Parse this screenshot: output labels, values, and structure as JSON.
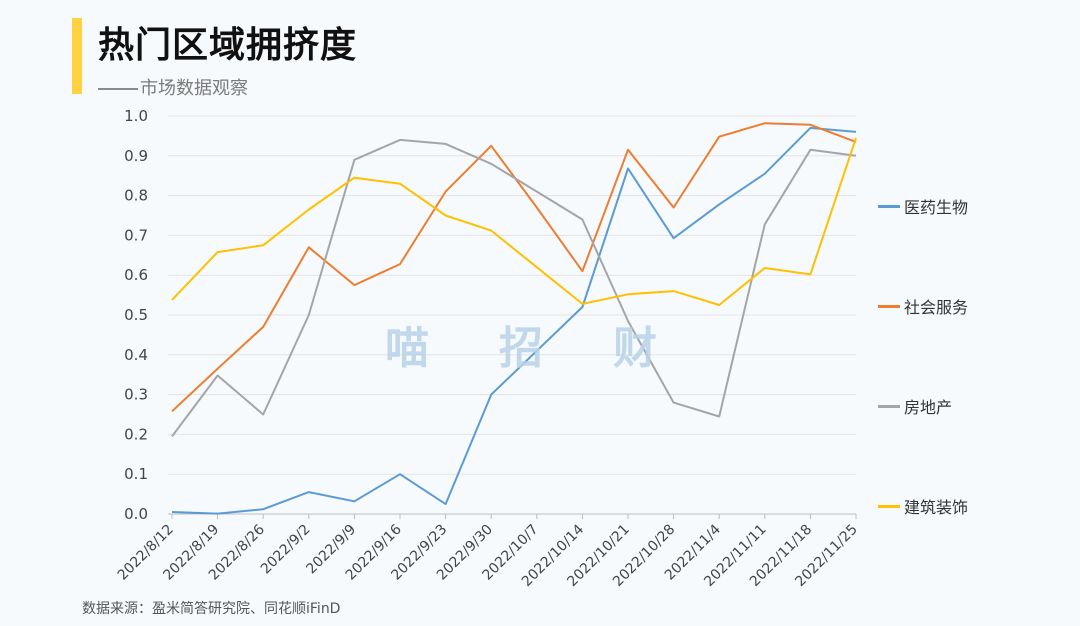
{
  "header": {
    "title": "热门区域拥挤度",
    "subtitle": "市场数据观察"
  },
  "watermark": "喵招财",
  "source": "数据来源：盈米简答研究院、同花顺iFinD",
  "chart_data": {
    "type": "line",
    "title": "",
    "xlabel": "",
    "ylabel": "",
    "ylim": [
      0,
      1
    ],
    "yticks": [
      "0.0",
      "0.1",
      "0.2",
      "0.3",
      "0.4",
      "0.5",
      "0.6",
      "0.7",
      "0.8",
      "0.9",
      "1.0"
    ],
    "grid": true,
    "legend_position": "right",
    "x": [
      "2022/8/12",
      "2022/8/19",
      "2022/8/26",
      "2022/9/2",
      "2022/9/9",
      "2022/9/16",
      "2022/9/23",
      "2022/9/30",
      "2022/10/7",
      "2022/10/14",
      "2022/10/21",
      "2022/10/28",
      "2022/11/4",
      "2022/11/11",
      "2022/11/18",
      "2022/11/25"
    ],
    "series": [
      {
        "name": "医药生物",
        "color": "#5b9bd5",
        "values": [
          0.005,
          0.001,
          0.012,
          0.055,
          0.032,
          0.1,
          0.025,
          0.3,
          0.41,
          0.52,
          0.868,
          0.693,
          0.778,
          0.855,
          0.97,
          0.96
        ]
      },
      {
        "name": "社会服务",
        "color": "#ed7d31",
        "values": [
          0.258,
          0.365,
          0.47,
          0.67,
          0.575,
          0.628,
          0.81,
          0.925,
          0.77,
          0.61,
          0.915,
          0.77,
          0.948,
          0.982,
          0.978,
          0.935
        ]
      },
      {
        "name": "房地产",
        "color": "#a5a5a5",
        "values": [
          0.195,
          0.348,
          0.25,
          0.5,
          0.89,
          0.94,
          0.93,
          0.88,
          0.81,
          0.74,
          0.485,
          0.28,
          0.245,
          0.728,
          0.915,
          0.9
        ]
      },
      {
        "name": "建筑装饰",
        "color": "#ffc000",
        "values": [
          0.538,
          0.658,
          0.675,
          0.765,
          0.845,
          0.83,
          0.75,
          0.712,
          0.62,
          0.528,
          0.552,
          0.56,
          0.525,
          0.618,
          0.602,
          0.945
        ]
      }
    ]
  }
}
